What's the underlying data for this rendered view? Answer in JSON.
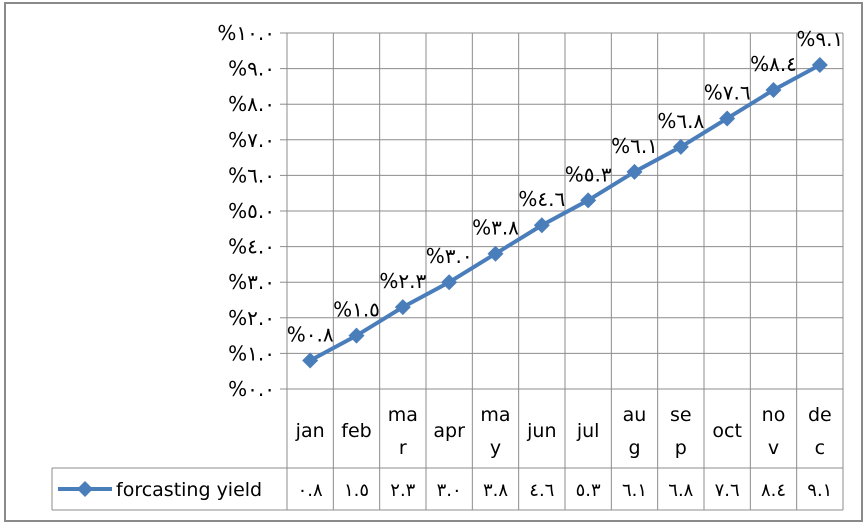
{
  "chart_data": {
    "type": "line",
    "categories": [
      {
        "top": "jan",
        "bottom": ""
      },
      {
        "top": "feb",
        "bottom": ""
      },
      {
        "top": "ma",
        "bottom": "r"
      },
      {
        "top": "apr",
        "bottom": ""
      },
      {
        "top": "ma",
        "bottom": "y"
      },
      {
        "top": "jun",
        "bottom": ""
      },
      {
        "top": "jul",
        "bottom": ""
      },
      {
        "top": "au",
        "bottom": "g"
      },
      {
        "top": "se",
        "bottom": "p"
      },
      {
        "top": "oct",
        "bottom": ""
      },
      {
        "top": "no",
        "bottom": "v"
      },
      {
        "top": "de",
        "bottom": "c"
      }
    ],
    "series": [
      {
        "name": "forcasting yield",
        "values": [
          0.8,
          1.5,
          2.3,
          3.0,
          3.8,
          4.6,
          5.3,
          6.1,
          6.8,
          7.6,
          8.4,
          9.1
        ],
        "point_labels": [
          "%٠.٨",
          "%١.٥",
          "%٢.٣",
          "%٣.٠",
          "%٣.٨",
          "%٤.٦",
          "%٥.٣",
          "%٦.١",
          "%٦.٨",
          "%٧.٦",
          "%٨.٤",
          "%٩.١"
        ],
        "table_values": [
          "٠.٨",
          "١.٥",
          "٢.٣",
          "٣.٠",
          "٣.٨",
          "٤.٦",
          "٥.٣",
          "٦.١",
          "٦.٨",
          "٧.٦",
          "٨.٤",
          "٩.١"
        ],
        "color": "#4a7ebb"
      }
    ],
    "y_ticks": [
      {
        "value": 0,
        "label": "%٠.٠"
      },
      {
        "value": 1,
        "label": "%١.٠"
      },
      {
        "value": 2,
        "label": "%٢.٠"
      },
      {
        "value": 3,
        "label": "%٣.٠"
      },
      {
        "value": 4,
        "label": "%٤.٠"
      },
      {
        "value": 5,
        "label": "%٥.٠"
      },
      {
        "value": 6,
        "label": "%٦.٠"
      },
      {
        "value": 7,
        "label": "%٧.٠"
      },
      {
        "value": 8,
        "label": "%٨.٠"
      },
      {
        "value": 9,
        "label": "%٩.٠"
      },
      {
        "value": 10,
        "label": "%١٠.٠"
      }
    ],
    "ylim": [
      0,
      10
    ],
    "grid": true,
    "legend": "data-table",
    "title": "",
    "xlabel": "",
    "ylabel": ""
  }
}
